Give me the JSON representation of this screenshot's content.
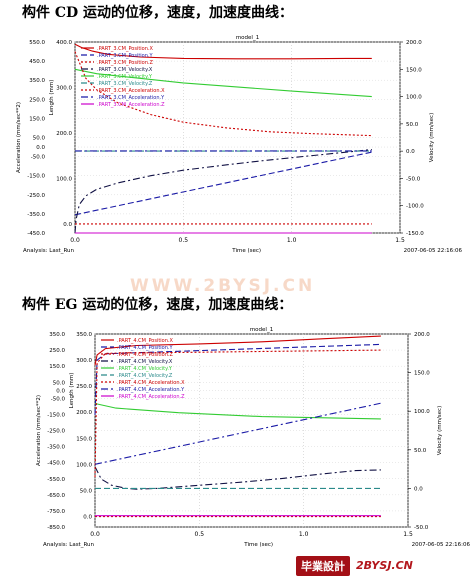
{
  "headings": {
    "top": "构件 CD 运动的位移，速度，加速度曲线：",
    "bottom": "构件 EG 运动的位移，速度，加速度曲线："
  },
  "watermark": "WWW.2BYSJ.CN",
  "footer": {
    "badge": "毕業設計",
    "site": "2BYSJ.CN"
  },
  "chart_data": [
    {
      "type": "line",
      "title": "model_1",
      "xlabel": "Time (sec)",
      "analysis": "Analysis:  Last_Run",
      "timestamp": "2007-06-05 22:16:06",
      "xlim": [
        0,
        1.5
      ],
      "x_ticks": [
        0.0,
        0.5,
        1.0,
        1.5
      ],
      "axes": {
        "accel": {
          "label": "Acceleration (mm/sec**2)",
          "lim": [
            -450,
            550
          ],
          "ticks": [
            550,
            450,
            350,
            250,
            150,
            50,
            0,
            -50,
            -150,
            -250,
            -350,
            -450
          ]
        },
        "length": {
          "label": "Length (mm)",
          "lim": [
            -20,
            400
          ],
          "ticks": [
            400,
            300,
            200,
            100,
            0
          ]
        },
        "velocity": {
          "label": "Velocity (mm/sec)",
          "lim": [
            -150,
            200
          ],
          "ticks": [
            200,
            150,
            100,
            50,
            0,
            -50,
            -100,
            -150
          ]
        }
      },
      "legend": {
        "placement": "top-left",
        "entries": [
          {
            "name": ".PART_3.CM_Position.X",
            "color": "#cc0000",
            "dash": "solid"
          },
          {
            "name": ".PART_3.CM_Position.Y",
            "color": "#1a1aa6",
            "dash": "dash"
          },
          {
            "name": ".PART_3.CM_Position.Z",
            "color": "#cc0000",
            "dash": "dot"
          },
          {
            "name": ".PART_3.CM_Velocity.X",
            "color": "#111144",
            "dash": "dashdot"
          },
          {
            "name": ".PART_3.CM_Velocity.Y",
            "color": "#33cc33",
            "dash": "solid"
          },
          {
            "name": ".PART_3.CM_Velocity.Z",
            "color": "#2a8a8a",
            "dash": "dash"
          },
          {
            "name": ".PART_3.CM_Acceleration.X",
            "color": "#cc0000",
            "dash": "dot"
          },
          {
            "name": ".PART_3.CM_Acceleration.Y",
            "color": "#1a1aa6",
            "dash": "dashdot"
          },
          {
            "name": ".PART_3.CM_Acceleration.Z",
            "color": "#cc00cc",
            "dash": "solid"
          }
        ]
      },
      "series": [
        {
          "name": ".PART_3.CM_Position.X",
          "axis": "length",
          "x": [
            0,
            0.03,
            0.08,
            0.15,
            0.3,
            0.5,
            0.75,
            1.0,
            1.25,
            1.37
          ],
          "y": [
            395,
            388,
            380,
            373,
            367,
            364,
            363,
            363,
            364,
            364
          ]
        },
        {
          "name": ".PART_3.CM_Position.Y",
          "axis": "length",
          "x": [
            0,
            1.37
          ],
          "y": [
            20,
            158
          ]
        },
        {
          "name": ".PART_3.CM_Position.Z",
          "axis": "length",
          "x": [
            0,
            1.37
          ],
          "y": [
            0,
            0
          ]
        },
        {
          "name": ".PART_3.CM_Velocity.X",
          "axis": "velocity",
          "x": [
            0,
            0.005,
            0.02,
            0.05,
            0.1,
            0.2,
            0.35,
            0.5,
            0.7,
            0.9,
            1.1,
            1.25,
            1.37
          ],
          "y": [
            -150,
            -125,
            -98,
            -82,
            -70,
            -58,
            -45,
            -35,
            -25,
            -16,
            -8,
            -2,
            3
          ]
        },
        {
          "name": ".PART_3.CM_Velocity.Y",
          "axis": "velocity",
          "x": [
            0,
            0.1,
            0.5,
            1.0,
            1.37
          ],
          "y": [
            150,
            142,
            125,
            110,
            100
          ]
        },
        {
          "name": ".PART_3.CM_Velocity.Z",
          "axis": "velocity",
          "x": [
            0,
            1.37
          ],
          "y": [
            0,
            0
          ]
        },
        {
          "name": ".PART_3.CM_Acceleration.X",
          "axis": "accel",
          "x": [
            0,
            0.05,
            0.1,
            0.2,
            0.35,
            0.5,
            0.7,
            0.9,
            1.1,
            1.37
          ],
          "y": [
            500,
            360,
            300,
            230,
            170,
            130,
            100,
            80,
            70,
            60
          ]
        },
        {
          "name": ".PART_3.CM_Acceleration.Y",
          "axis": "accel",
          "x": [
            0,
            1.37
          ],
          "y": [
            -20,
            -20
          ]
        },
        {
          "name": ".PART_3.CM_Acceleration.Z",
          "axis": "accel",
          "x": [
            0,
            1.37
          ],
          "y": [
            -450,
            -450
          ]
        }
      ]
    },
    {
      "type": "line",
      "title": "model_1",
      "xlabel": "Time (sec)",
      "analysis": "Analysis:  Last_Run",
      "timestamp": "2007-06-05 22:16:06",
      "xlim": [
        0,
        1.5
      ],
      "x_ticks": [
        0.0,
        0.5,
        1.0,
        1.5
      ],
      "axes": {
        "accel": {
          "label": "Acceleration (mm/sec**2)",
          "lim": [
            -850,
            350
          ],
          "ticks": [
            350,
            250,
            150,
            50,
            0,
            -50,
            -150,
            -250,
            -350,
            -450,
            -550,
            -650,
            -750,
            -850
          ]
        },
        "length": {
          "label": "Length (mm)",
          "lim": [
            -20,
            350
          ],
          "ticks": [
            350,
            300,
            250,
            200,
            150,
            100,
            50,
            0
          ]
        },
        "velocity": {
          "label": "Velocity (mm/sec)",
          "lim": [
            -50,
            200
          ],
          "ticks": [
            200,
            150,
            100,
            50,
            0,
            -50
          ]
        }
      },
      "legend": {
        "placement": "top-left",
        "entries": [
          {
            "name": ".PART_4.CM_Position.X",
            "color": "#cc0000",
            "dash": "solid"
          },
          {
            "name": ".PART_4.CM_Position.Y",
            "color": "#1a1aa6",
            "dash": "dash"
          },
          {
            "name": ".PART_4.CM_Position.Z",
            "color": "#cc0000",
            "dash": "dot"
          },
          {
            "name": ".PART_4.CM_Velocity.X",
            "color": "#111144",
            "dash": "dashdot"
          },
          {
            "name": ".PART_4.CM_Velocity.Y",
            "color": "#33cc33",
            "dash": "solid"
          },
          {
            "name": ".PART_4.CM_Velocity.Z",
            "color": "#2a8a8a",
            "dash": "dash"
          },
          {
            "name": ".PART_4.CM_Acceleration.X",
            "color": "#cc0000",
            "dash": "dot"
          },
          {
            "name": ".PART_4.CM_Acceleration.Y",
            "color": "#1a1aa6",
            "dash": "dashdot"
          },
          {
            "name": ".PART_4.CM_Acceleration.Z",
            "color": "#cc00cc",
            "dash": "solid"
          }
        ]
      },
      "series": [
        {
          "name": ".PART_4.CM_Position.X",
          "axis": "length",
          "x": [
            0,
            0.01,
            0.05,
            0.2,
            0.5,
            0.8,
            1.1,
            1.37
          ],
          "y": [
            290,
            310,
            322,
            328,
            331,
            335,
            341,
            346
          ]
        },
        {
          "name": ".PART_4.CM_Position.Y",
          "axis": "length",
          "x": [
            0,
            0.01,
            0.05,
            1.37
          ],
          "y": [
            195,
            300,
            312,
            330
          ]
        },
        {
          "name": ".PART_4.CM_Position.Z",
          "axis": "length",
          "x": [
            0,
            1.37
          ],
          "y": [
            0,
            0
          ]
        },
        {
          "name": ".PART_4.CM_Velocity.X",
          "axis": "velocity",
          "x": [
            0,
            0.03,
            0.08,
            0.15,
            0.2,
            0.3,
            0.5,
            0.7,
            0.9,
            1.1,
            1.25,
            1.37
          ],
          "y": [
            28,
            12,
            4,
            0,
            -1,
            0,
            4,
            8,
            13,
            19,
            23,
            24
          ]
        },
        {
          "name": ".PART_4.CM_Velocity.Y",
          "axis": "velocity",
          "x": [
            0,
            0.1,
            0.4,
            0.8,
            1.37
          ],
          "y": [
            110,
            104,
            98,
            93,
            90
          ]
        },
        {
          "name": ".PART_4.CM_Velocity.Z",
          "axis": "velocity",
          "x": [
            0,
            1.37
          ],
          "y": [
            0,
            0
          ]
        },
        {
          "name": ".PART_4.CM_Acceleration.X",
          "axis": "accel",
          "x": [
            0,
            0.01,
            0.05,
            1.37
          ],
          "y": [
            -540,
            170,
            230,
            250
          ]
        },
        {
          "name": ".PART_4.CM_Acceleration.Y",
          "axis": "accel",
          "x": [
            0,
            1.37
          ],
          "y": [
            -460,
            -80
          ]
        },
        {
          "name": ".PART_4.CM_Acceleration.Z",
          "axis": "accel",
          "x": [
            0,
            1.37
          ],
          "y": [
            -780,
            -780
          ]
        }
      ]
    }
  ]
}
